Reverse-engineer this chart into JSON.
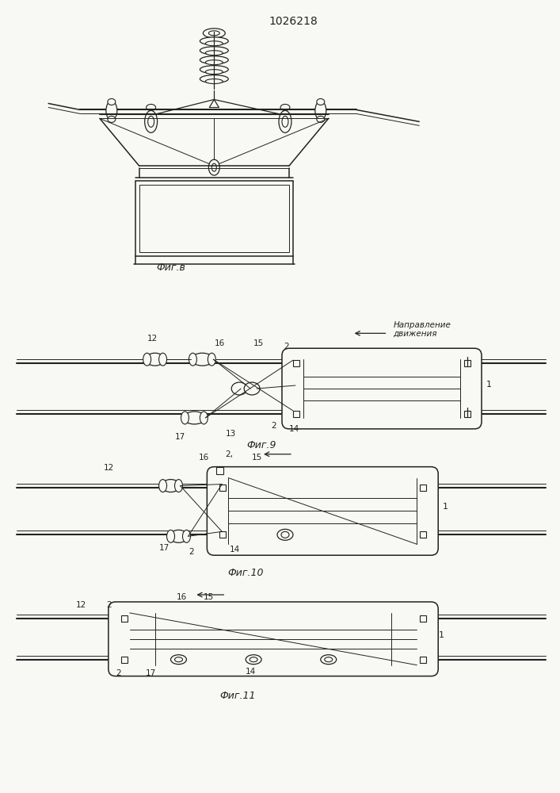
{
  "title": "1026218",
  "bg_color": "#f8f8f4",
  "line_color": "#222222",
  "fig_labels": [
    "Фиг.в",
    "Фиг.9",
    "Фиг.10",
    "Фиг.11"
  ],
  "direction_label": "Направление\nдвижения"
}
